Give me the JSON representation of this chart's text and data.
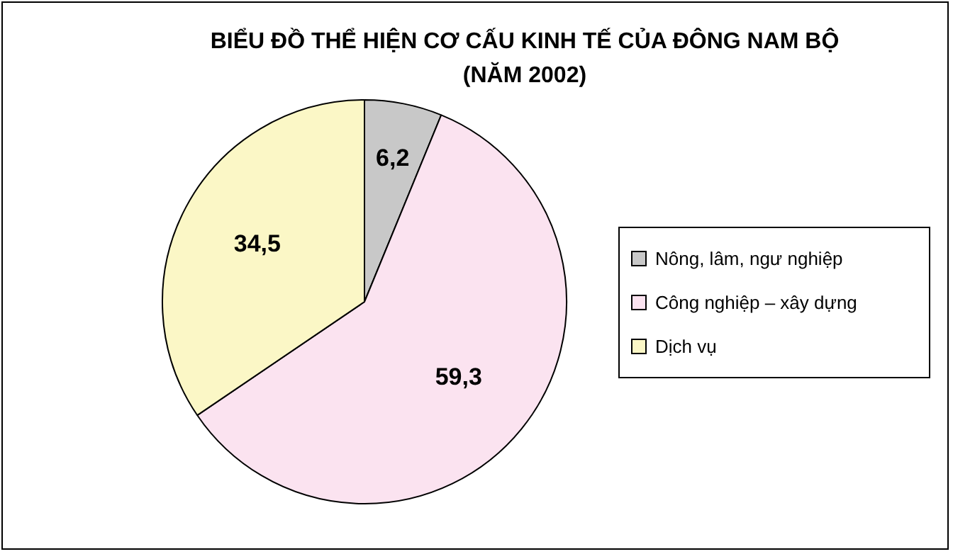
{
  "chart_data": {
    "type": "pie",
    "title": "BIỂU ĐỒ THỂ HIỆN CƠ CẤU KINH TẾ CỦA ĐÔNG NAM BỘ",
    "subtitle": "(NĂM 2002)",
    "categories": [
      "Nông, lâm, ngư nghiệp",
      "Công nghiệp – xây dựng",
      "Dịch vụ"
    ],
    "values": [
      6.2,
      59.3,
      34.5
    ],
    "value_labels": [
      "6,2",
      "59,3",
      "34,5"
    ],
    "colors": [
      "#c8c8c8",
      "#fbe3f0",
      "#fbf7c6"
    ],
    "legend": "right"
  }
}
